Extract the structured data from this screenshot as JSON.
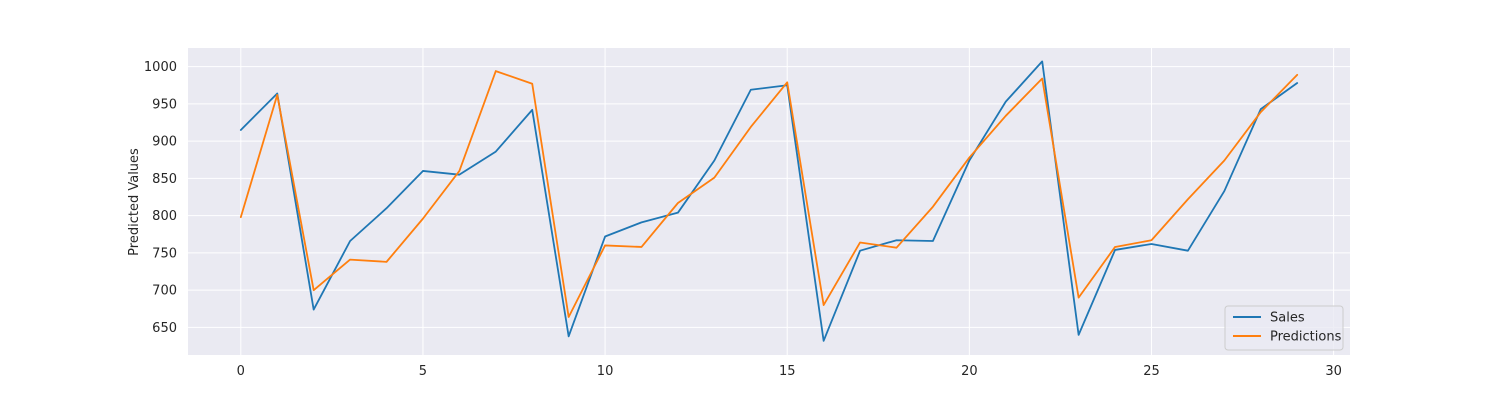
{
  "chart_data": {
    "type": "line",
    "title": "",
    "xlabel": "",
    "ylabel": "Predicted Values",
    "x": [
      0,
      1,
      2,
      3,
      4,
      5,
      6,
      7,
      8,
      9,
      10,
      11,
      12,
      13,
      14,
      15,
      16,
      17,
      18,
      19,
      20,
      21,
      22,
      23,
      24,
      25,
      26,
      27,
      28,
      29
    ],
    "xlim": [
      -1.45,
      30.45
    ],
    "ylim": [
      613,
      1025
    ],
    "xticks": [
      0,
      5,
      10,
      15,
      20,
      25,
      30
    ],
    "yticks": [
      650,
      700,
      750,
      800,
      850,
      900,
      950,
      1000
    ],
    "grid": true,
    "legend_position": "lower-right",
    "series": [
      {
        "name": "Sales",
        "color": "#1f77b4",
        "values": [
          915,
          964,
          674,
          766,
          810,
          860,
          855,
          886,
          942,
          638,
          772,
          791,
          804,
          874,
          969,
          975,
          632,
          753,
          767,
          766,
          874,
          953,
          1007,
          640,
          754,
          762,
          753,
          833,
          943,
          978
        ]
      },
      {
        "name": "Predictions",
        "color": "#ff7f0e",
        "values": [
          798,
          962,
          700,
          741,
          738,
          796,
          860,
          994,
          977,
          664,
          760,
          758,
          817,
          851,
          919,
          979,
          680,
          764,
          757,
          812,
          878,
          934,
          984,
          690,
          758,
          767,
          822,
          874,
          939,
          989
        ]
      }
    ]
  }
}
